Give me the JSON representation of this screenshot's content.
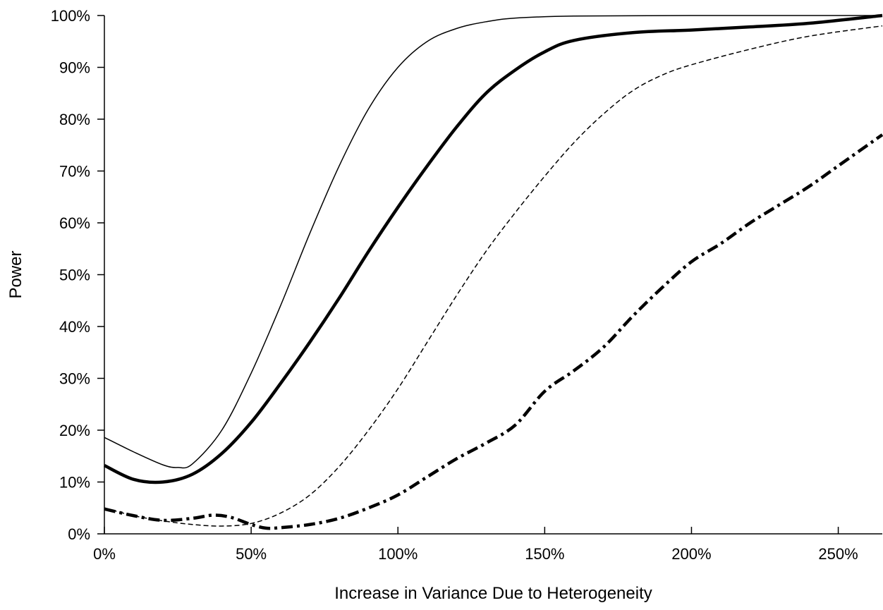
{
  "chart_data": {
    "type": "line",
    "title": "",
    "xlabel": "Increase in Variance Due to Heterogeneity",
    "ylabel": "Power",
    "xlim": [
      0,
      2.65
    ],
    "ylim": [
      0,
      1.0
    ],
    "x_ticks": [
      0,
      0.5,
      1.0,
      1.5,
      2.0,
      2.5
    ],
    "x_tick_labels": [
      "0%",
      "50%",
      "100%",
      "150%",
      "200%",
      "250%"
    ],
    "y_ticks": [
      0,
      0.1,
      0.2,
      0.3,
      0.4,
      0.5,
      0.6,
      0.7,
      0.8,
      0.9,
      1.0
    ],
    "y_tick_labels": [
      "0%",
      "10%",
      "20%",
      "30%",
      "40%",
      "50%",
      "60%",
      "70%",
      "80%",
      "90%",
      "100%"
    ],
    "grid": false,
    "legend": "none",
    "series": [
      {
        "style": "solid-thin",
        "points": [
          [
            0,
            0.186
          ],
          [
            0.1,
            0.158
          ],
          [
            0.2,
            0.133
          ],
          [
            0.25,
            0.128
          ],
          [
            0.3,
            0.135
          ],
          [
            0.4,
            0.2
          ],
          [
            0.5,
            0.31
          ],
          [
            0.6,
            0.44
          ],
          [
            0.7,
            0.58
          ],
          [
            0.8,
            0.71
          ],
          [
            0.9,
            0.82
          ],
          [
            1.0,
            0.9
          ],
          [
            1.1,
            0.95
          ],
          [
            1.2,
            0.975
          ],
          [
            1.3,
            0.988
          ],
          [
            1.4,
            0.995
          ],
          [
            1.6,
            0.999
          ],
          [
            2.0,
            1.0
          ],
          [
            2.65,
            1.0
          ]
        ]
      },
      {
        "style": "solid-thick",
        "points": [
          [
            0,
            0.132
          ],
          [
            0.1,
            0.105
          ],
          [
            0.2,
            0.1
          ],
          [
            0.3,
            0.115
          ],
          [
            0.4,
            0.155
          ],
          [
            0.5,
            0.215
          ],
          [
            0.6,
            0.29
          ],
          [
            0.7,
            0.37
          ],
          [
            0.8,
            0.455
          ],
          [
            0.9,
            0.545
          ],
          [
            1.0,
            0.63
          ],
          [
            1.1,
            0.71
          ],
          [
            1.2,
            0.785
          ],
          [
            1.3,
            0.85
          ],
          [
            1.4,
            0.895
          ],
          [
            1.5,
            0.93
          ],
          [
            1.6,
            0.952
          ],
          [
            1.8,
            0.967
          ],
          [
            2.0,
            0.972
          ],
          [
            2.2,
            0.978
          ],
          [
            2.4,
            0.985
          ],
          [
            2.65,
            1.0
          ]
        ]
      },
      {
        "style": "dashed-thin",
        "points": [
          [
            0,
            0.05
          ],
          [
            0.1,
            0.035
          ],
          [
            0.2,
            0.025
          ],
          [
            0.3,
            0.018
          ],
          [
            0.4,
            0.015
          ],
          [
            0.5,
            0.02
          ],
          [
            0.6,
            0.04
          ],
          [
            0.7,
            0.075
          ],
          [
            0.8,
            0.13
          ],
          [
            0.9,
            0.2
          ],
          [
            1.0,
            0.28
          ],
          [
            1.1,
            0.37
          ],
          [
            1.2,
            0.46
          ],
          [
            1.3,
            0.545
          ],
          [
            1.4,
            0.62
          ],
          [
            1.5,
            0.69
          ],
          [
            1.6,
            0.755
          ],
          [
            1.7,
            0.81
          ],
          [
            1.8,
            0.855
          ],
          [
            1.9,
            0.885
          ],
          [
            2.0,
            0.905
          ],
          [
            2.2,
            0.935
          ],
          [
            2.4,
            0.96
          ],
          [
            2.65,
            0.98
          ]
        ]
      },
      {
        "style": "dash-dot-thick",
        "points": [
          [
            0,
            0.048
          ],
          [
            0.1,
            0.035
          ],
          [
            0.2,
            0.026
          ],
          [
            0.3,
            0.03
          ],
          [
            0.37,
            0.036
          ],
          [
            0.43,
            0.032
          ],
          [
            0.5,
            0.018
          ],
          [
            0.55,
            0.011
          ],
          [
            0.6,
            0.012
          ],
          [
            0.7,
            0.018
          ],
          [
            0.8,
            0.03
          ],
          [
            0.9,
            0.05
          ],
          [
            1.0,
            0.075
          ],
          [
            1.1,
            0.11
          ],
          [
            1.2,
            0.145
          ],
          [
            1.3,
            0.175
          ],
          [
            1.4,
            0.21
          ],
          [
            1.5,
            0.275
          ],
          [
            1.6,
            0.315
          ],
          [
            1.7,
            0.36
          ],
          [
            1.8,
            0.42
          ],
          [
            1.9,
            0.475
          ],
          [
            2.0,
            0.525
          ],
          [
            2.1,
            0.56
          ],
          [
            2.2,
            0.6
          ],
          [
            2.3,
            0.635
          ],
          [
            2.4,
            0.67
          ],
          [
            2.5,
            0.71
          ],
          [
            2.65,
            0.77
          ]
        ]
      }
    ]
  }
}
